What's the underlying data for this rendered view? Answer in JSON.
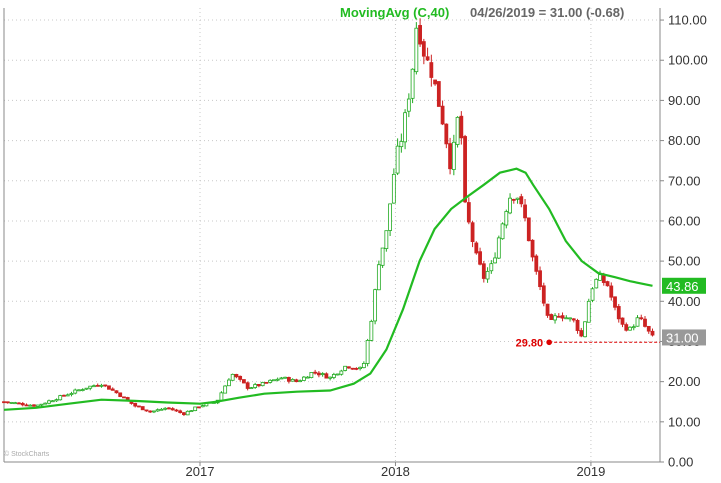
{
  "legend": {
    "indicator": "MovingAvg (C,40)",
    "readout": "04/26/2019 = 31.00 (-0.68)"
  },
  "watermark": "© StockCharts",
  "colors": {
    "up": "#22aa22",
    "down": "#cc2222",
    "ma": "#22bb22",
    "grid": "#c8c8c8",
    "last_price_badge": "#999999",
    "ma_badge": "#22bb22",
    "support_line": "#dd0000"
  },
  "chart_data": {
    "type": "candlestick",
    "title": "",
    "xlabel": "",
    "ylabel": "",
    "ylim": [
      0,
      113
    ],
    "x_range": [
      "2016-01-01",
      "2019-05-10"
    ],
    "y_ticks": [
      "0.00",
      "10.00",
      "20.00",
      "30.00",
      "40.00",
      "50.00",
      "60.00",
      "70.00",
      "80.00",
      "90.00",
      "100.00",
      "110.00"
    ],
    "x_ticks": [
      {
        "date": "2017-01-01",
        "label": "2017"
      },
      {
        "date": "2018-01-01",
        "label": "2018"
      },
      {
        "date": "2019-01-01",
        "label": "2019"
      }
    ],
    "grid": true,
    "price_series": [
      [
        "2016-01-01",
        15.0
      ],
      [
        "2016-02-01",
        14.5
      ],
      [
        "2016-03-01",
        14.0
      ],
      [
        "2016-04-01",
        15.5
      ],
      [
        "2016-05-01",
        17.0
      ],
      [
        "2016-06-01",
        18.5
      ],
      [
        "2016-07-01",
        19.5
      ],
      [
        "2016-08-01",
        17.0
      ],
      [
        "2016-09-01",
        14.0
      ],
      [
        "2016-10-01",
        12.5
      ],
      [
        "2016-11-01",
        13.5
      ],
      [
        "2016-12-01",
        12.0
      ],
      [
        "2017-01-01",
        14.0
      ],
      [
        "2017-02-01",
        15.0
      ],
      [
        "2017-03-01",
        22.0
      ],
      [
        "2017-04-01",
        18.5
      ],
      [
        "2017-05-01",
        19.5
      ],
      [
        "2017-06-01",
        21.0
      ],
      [
        "2017-07-01",
        20.0
      ],
      [
        "2017-08-01",
        22.5
      ],
      [
        "2017-09-01",
        21.0
      ],
      [
        "2017-10-01",
        24.0
      ],
      [
        "2017-11-01",
        23.0
      ],
      [
        "2017-11-20",
        38.0
      ],
      [
        "2017-12-01",
        50.0
      ],
      [
        "2017-12-15",
        57.0
      ],
      [
        "2018-01-01",
        75.0
      ],
      [
        "2018-01-15",
        82.0
      ],
      [
        "2018-02-01",
        97.0
      ],
      [
        "2018-02-10",
        110.0
      ],
      [
        "2018-02-25",
        101.0
      ],
      [
        "2018-03-10",
        97.0
      ],
      [
        "2018-04-01",
        84.0
      ],
      [
        "2018-04-15",
        73.0
      ],
      [
        "2018-05-01",
        89.0
      ],
      [
        "2018-05-10",
        64.0
      ],
      [
        "2018-06-01",
        51.0
      ],
      [
        "2018-06-15",
        46.0
      ],
      [
        "2018-07-01",
        49.0
      ],
      [
        "2018-07-15",
        57.0
      ],
      [
        "2018-08-01",
        66.0
      ],
      [
        "2018-08-15",
        67.0
      ],
      [
        "2018-09-01",
        60.0
      ],
      [
        "2018-09-15",
        50.0
      ],
      [
        "2018-10-01",
        42.0
      ],
      [
        "2018-10-15",
        34.0
      ],
      [
        "2018-11-01",
        37.0
      ],
      [
        "2018-11-15",
        36.0
      ],
      [
        "2018-12-01",
        35.0
      ],
      [
        "2018-12-15",
        31.0
      ],
      [
        "2019-01-01",
        43.0
      ],
      [
        "2019-01-15",
        46.0
      ],
      [
        "2019-02-01",
        44.0
      ],
      [
        "2019-02-15",
        38.0
      ],
      [
        "2019-03-01",
        34.0
      ],
      [
        "2019-03-15",
        33.0
      ],
      [
        "2019-04-01",
        36.0
      ],
      [
        "2019-04-15",
        33.0
      ],
      [
        "2019-04-26",
        31.0
      ]
    ],
    "moving_average": {
      "name": "MovingAvg (C,40)",
      "points": [
        [
          "2016-01-01",
          13.0
        ],
        [
          "2016-03-01",
          13.5
        ],
        [
          "2016-05-01",
          14.5
        ],
        [
          "2016-07-01",
          15.5
        ],
        [
          "2016-09-01",
          15.2
        ],
        [
          "2016-11-01",
          14.8
        ],
        [
          "2017-01-01",
          14.5
        ],
        [
          "2017-02-01",
          15.0
        ],
        [
          "2017-03-15",
          16.0
        ],
        [
          "2017-05-01",
          17.0
        ],
        [
          "2017-07-01",
          17.5
        ],
        [
          "2017-09-01",
          17.8
        ],
        [
          "2017-10-15",
          19.5
        ],
        [
          "2017-11-15",
          22.0
        ],
        [
          "2017-12-15",
          28.0
        ],
        [
          "2018-01-15",
          38.0
        ],
        [
          "2018-02-15",
          50.0
        ],
        [
          "2018-03-15",
          58.0
        ],
        [
          "2018-04-15",
          63.0
        ],
        [
          "2018-05-15",
          66.0
        ],
        [
          "2018-06-15",
          69.0
        ],
        [
          "2018-07-15",
          72.0
        ],
        [
          "2018-08-15",
          73.0
        ],
        [
          "2018-09-01",
          72.0
        ],
        [
          "2018-09-15",
          69.0
        ],
        [
          "2018-10-15",
          63.0
        ],
        [
          "2018-11-15",
          55.0
        ],
        [
          "2018-12-15",
          50.0
        ],
        [
          "2019-01-15",
          47.0
        ],
        [
          "2019-02-15",
          46.0
        ],
        [
          "2019-03-15",
          45.0
        ],
        [
          "2019-04-26",
          43.86
        ]
      ]
    },
    "badges": [
      {
        "value": 43.86,
        "label": "43.86",
        "kind": "moving-average"
      },
      {
        "value": 31.0,
        "label": "31.00",
        "kind": "last-price"
      }
    ],
    "support": {
      "value": 29.8,
      "label": "29.80",
      "from_date": "2018-10-15"
    }
  }
}
